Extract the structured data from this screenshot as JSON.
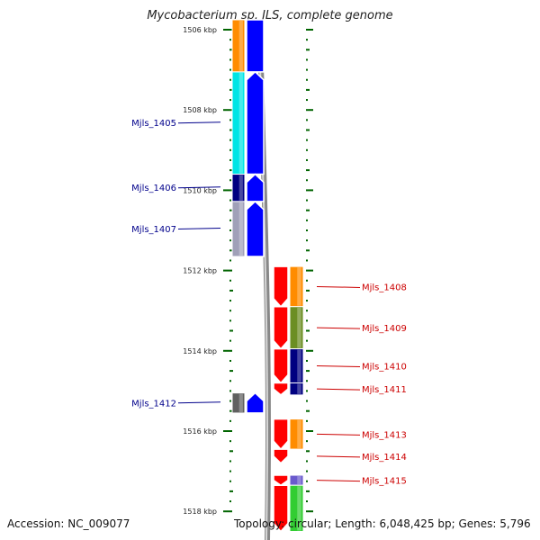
{
  "title": "Mycobacterium sp. JLS, complete genome",
  "accession": "Accession: NC_009077",
  "topology": "Topology: circular; Length: 6,048,425 bp; Genes: 5,796",
  "colors": {
    "reverse_label": "#00008b",
    "forward_label": "#cc0000",
    "tick": "#006400",
    "backbone": "#888888"
  },
  "scale": {
    "unit": "kbp",
    "ticks": [
      {
        "kbp": 1506,
        "label": "1506 kbp"
      },
      {
        "kbp": 1508,
        "label": "1508 kbp"
      },
      {
        "kbp": 1510,
        "label": "1510 kbp"
      },
      {
        "kbp": 1512,
        "label": "1512 kbp"
      },
      {
        "kbp": 1514,
        "label": "1514 kbp"
      },
      {
        "kbp": 1516,
        "label": "1516 kbp"
      },
      {
        "kbp": 1518,
        "label": "1518 kbp"
      }
    ]
  },
  "genes": [
    {
      "name": "Mjls_1405",
      "strand": "reverse",
      "start": 1507.05,
      "end": 1509.6,
      "cog_color": "#00e5e5"
    },
    {
      "name": "Mjls_1406",
      "strand": "reverse",
      "start": 1509.6,
      "end": 1510.28,
      "cog_color": "#000080"
    },
    {
      "name": "Mjls_1407",
      "strand": "reverse",
      "start": 1510.28,
      "end": 1511.65,
      "cog_color": "#a0a0b8"
    },
    {
      "name": "Mjls_1408",
      "strand": "forward",
      "start": 1511.9,
      "end": 1512.9,
      "cog_color": "#ff8c00"
    },
    {
      "name": "Mjls_1409",
      "strand": "forward",
      "start": 1512.9,
      "end": 1513.95,
      "cog_color": "#6b8e23"
    },
    {
      "name": "Mjls_1410",
      "strand": "forward",
      "start": 1513.95,
      "end": 1514.8,
      "cog_color": "#000080"
    },
    {
      "name": "Mjls_1411",
      "strand": "forward",
      "start": 1514.8,
      "end": 1515.1,
      "cog_color": "#000080"
    },
    {
      "name": "Mjls_1412",
      "strand": "reverse",
      "start": 1515.05,
      "end": 1515.55,
      "cog_color": "#606060"
    },
    {
      "name": "Mjls_1413",
      "strand": "forward",
      "start": 1515.7,
      "end": 1516.45,
      "cog_color": "#ff8c00"
    },
    {
      "name": "Mjls_1414",
      "strand": "forward",
      "start": 1516.45,
      "end": 1516.8,
      "cog_color": ""
    },
    {
      "name": "Mjls_1415",
      "strand": "forward",
      "start": 1517.1,
      "end": 1517.35,
      "cog_color": "#6a5acd"
    }
  ],
  "unlabeled_genes": [
    {
      "strand": "reverse",
      "start": 1505.5,
      "end": 1507.05,
      "cog_color": "#ff8c00"
    },
    {
      "strand": "forward",
      "start": 1517.35,
      "end": 1518.5,
      "cog_color": "#32cd32"
    }
  ]
}
